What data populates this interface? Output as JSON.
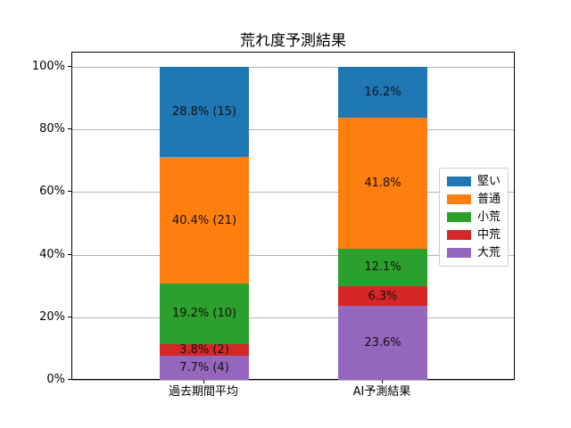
{
  "title": "荒れ度予測結果",
  "chart_data": {
    "type": "bar",
    "stacked": true,
    "percent": true,
    "title": "荒れ度予測結果",
    "categories": [
      "過去期間平均",
      "AI予測結果"
    ],
    "series": [
      {
        "name": "大荒",
        "color": "#9467bd",
        "values": [
          7.7,
          23.6
        ],
        "labels": [
          "7.7% (4)",
          "23.6%"
        ]
      },
      {
        "name": "中荒",
        "color": "#d62728",
        "values": [
          3.8,
          6.3
        ],
        "labels": [
          "3.8% (2)",
          "6.3%"
        ]
      },
      {
        "name": "小荒",
        "color": "#2ca02c",
        "values": [
          19.2,
          12.1
        ],
        "labels": [
          "19.2% (10)",
          "12.1%"
        ]
      },
      {
        "name": "普通",
        "color": "#ff7f0e",
        "values": [
          40.4,
          41.8
        ],
        "labels": [
          "40.4% (21)",
          "41.8%"
        ]
      },
      {
        "name": "堅い",
        "color": "#1f77b4",
        "values": [
          28.8,
          16.2
        ],
        "labels": [
          "28.8% (15)",
          "16.2%"
        ]
      }
    ],
    "legend": {
      "position": "center right",
      "entries": [
        "堅い",
        "普通",
        "小荒",
        "中荒",
        "大荒"
      ]
    },
    "y_axis": {
      "ticks": [
        {
          "label": "0%",
          "value": 0
        },
        {
          "label": "20%",
          "value": 20
        },
        {
          "label": "40%",
          "value": 40
        },
        {
          "label": "60%",
          "value": 60
        },
        {
          "label": "80%",
          "value": 80
        },
        {
          "label": "100%",
          "value": 100
        }
      ],
      "ylim": [
        0,
        105
      ]
    },
    "grid": true
  }
}
